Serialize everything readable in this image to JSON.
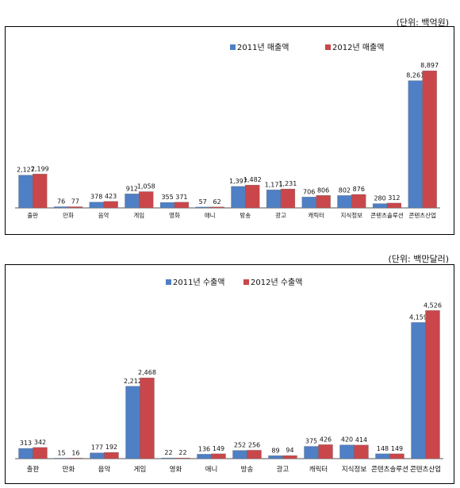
{
  "chart_data": [
    {
      "type": "bar",
      "unit_label": "(단위: 백억원)",
      "categories": [
        "출판",
        "만화",
        "음악",
        "게임",
        "영화",
        "애니",
        "방송",
        "광고",
        "캐릭터",
        "지식정보",
        "콘텐츠솔루션",
        "콘텐츠산업"
      ],
      "series": [
        {
          "name": "2011년 매출액",
          "values": [
            2127,
            76,
            378,
            912,
            355,
            57,
            1397,
            1171,
            706,
            802,
            280,
            8261
          ],
          "labels": [
            "2,127",
            "76",
            "378",
            "912",
            "355",
            "57",
            "1,397",
            "1,171",
            "706",
            "802",
            "280",
            "8,261"
          ]
        },
        {
          "name": "2012년 매출액",
          "values": [
            2199,
            77,
            423,
            1058,
            371,
            62,
            1482,
            1231,
            806,
            876,
            312,
            8897
          ],
          "labels": [
            "2,199",
            "77",
            "423",
            "1,058",
            "371",
            "62",
            "1,482",
            "1,231",
            "806",
            "876",
            "312",
            "8,897"
          ]
        }
      ],
      "ylim": [
        0,
        9500
      ],
      "legend": "top-center",
      "grid": false
    },
    {
      "type": "bar",
      "unit_label": "(단위: 백만달러)",
      "categories": [
        "출판",
        "만화",
        "음악",
        "게임",
        "영화",
        "애니",
        "방송",
        "광고",
        "캐릭터",
        "지식정보",
        "콘텐츠솔루션",
        "콘텐츠산업"
      ],
      "series": [
        {
          "name": "2011년 수출액",
          "values": [
            313,
            15,
            177,
            2212,
            22,
            136,
            252,
            89,
            375,
            420,
            148,
            4159
          ],
          "labels": [
            "313",
            "15",
            "177",
            "2,212",
            "22",
            "136",
            "252",
            "89",
            "375",
            "420",
            "148",
            "4,159"
          ]
        },
        {
          "name": "2012년 수출액",
          "values": [
            342,
            16,
            192,
            2468,
            22,
            149,
            256,
            94,
            426,
            414,
            149,
            4526
          ],
          "labels": [
            "342",
            "16",
            "192",
            "2,468",
            "22",
            "149",
            "256",
            "94",
            "426",
            "414",
            "149",
            "4,526"
          ]
        }
      ],
      "ylim": [
        0,
        4800
      ],
      "legend": "top-center",
      "grid": false
    }
  ],
  "colors": {
    "series1": "#4f7fc4",
    "series2": "#c9474a"
  }
}
